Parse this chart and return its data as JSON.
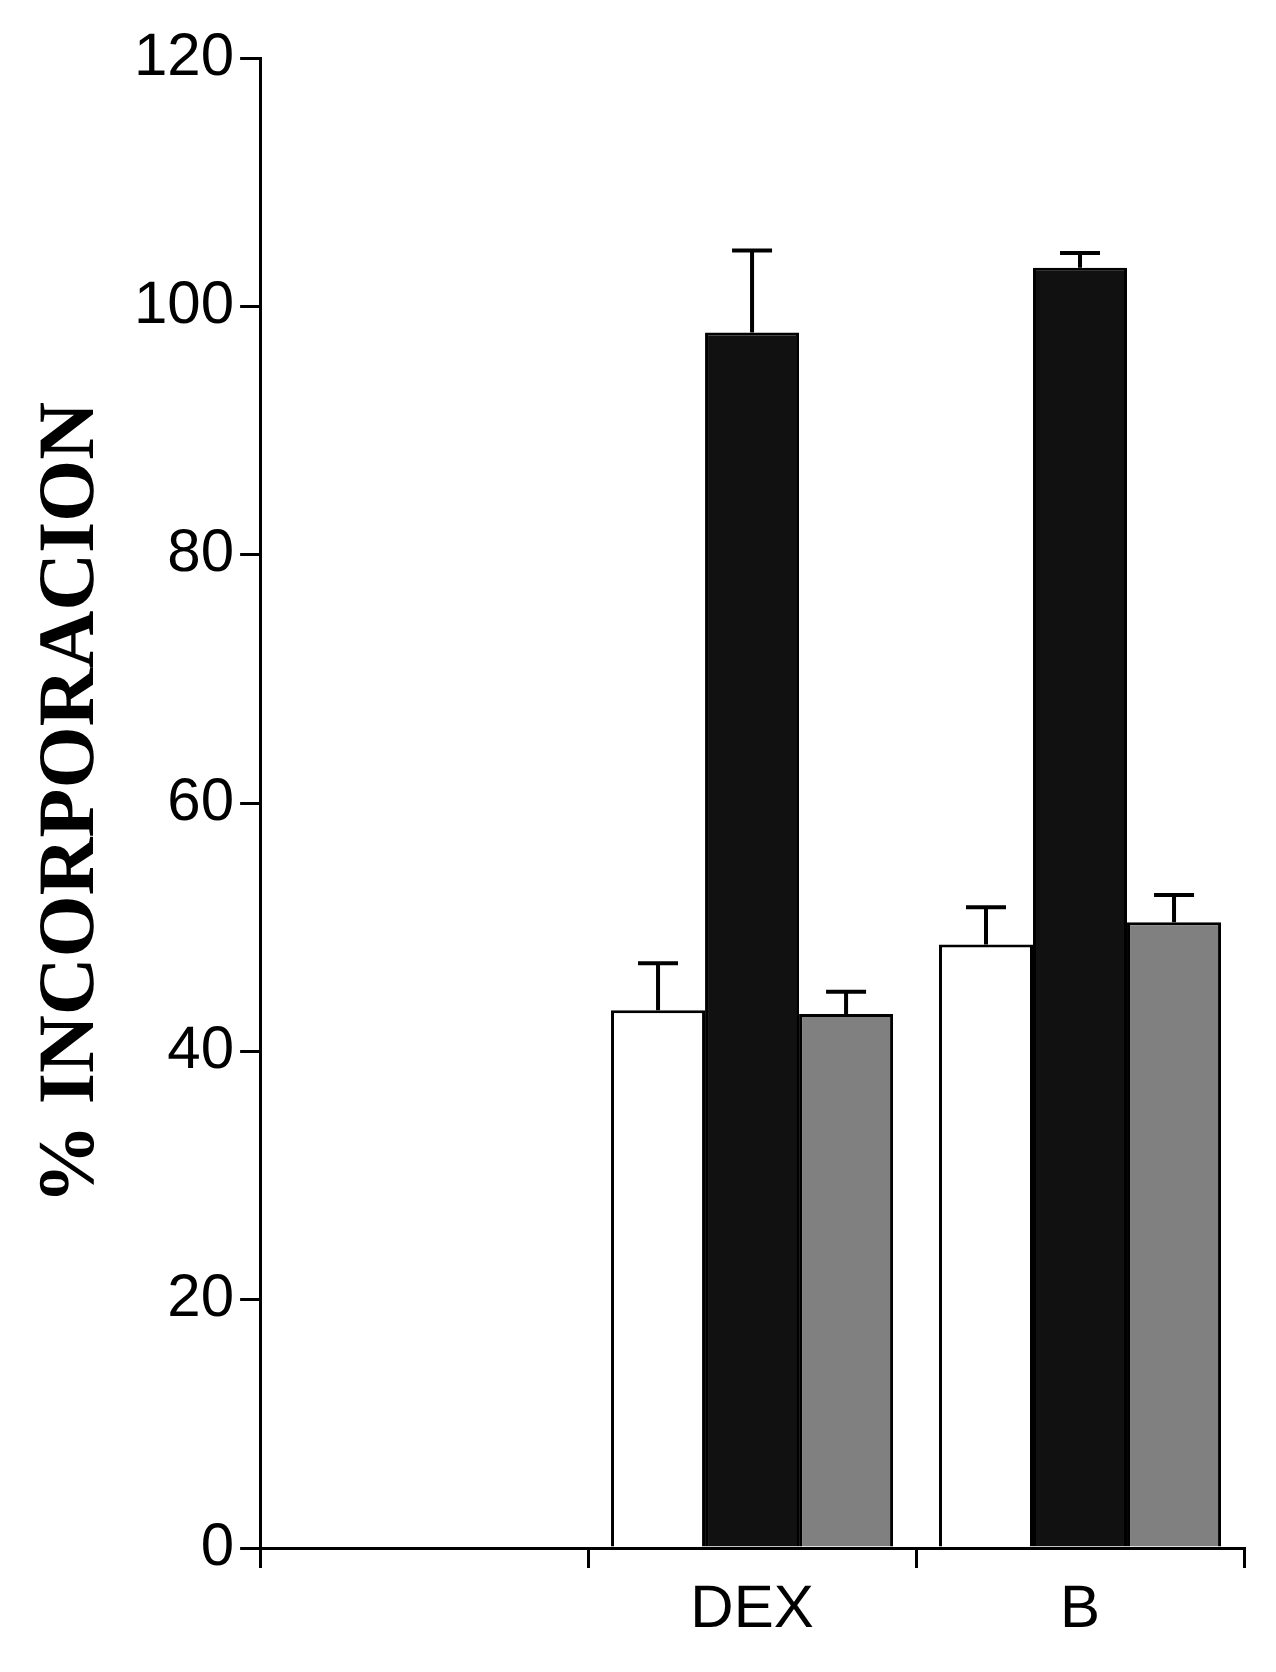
{
  "chart_data": {
    "type": "bar",
    "ylabel": "% INCORPORACION",
    "categories": [
      null,
      "DEX",
      "B"
    ],
    "series": [
      {
        "color": "#ffffff",
        "values": [
          null,
          43.3,
          48.6
        ],
        "errors": [
          null,
          3.8,
          3.0
        ]
      },
      {
        "color": "#111111",
        "values": [
          null,
          97.9,
          103.1
        ],
        "errors": [
          null,
          6.6,
          1.2
        ]
      },
      {
        "color": "#808080",
        "values": [
          null,
          43.0,
          50.4
        ],
        "errors": [
          null,
          1.8,
          2.2
        ]
      }
    ],
    "ylim": [
      0,
      120
    ],
    "yticks": [
      0,
      20,
      40,
      60,
      80,
      100,
      120
    ],
    "grid": false,
    "legend": false
  }
}
